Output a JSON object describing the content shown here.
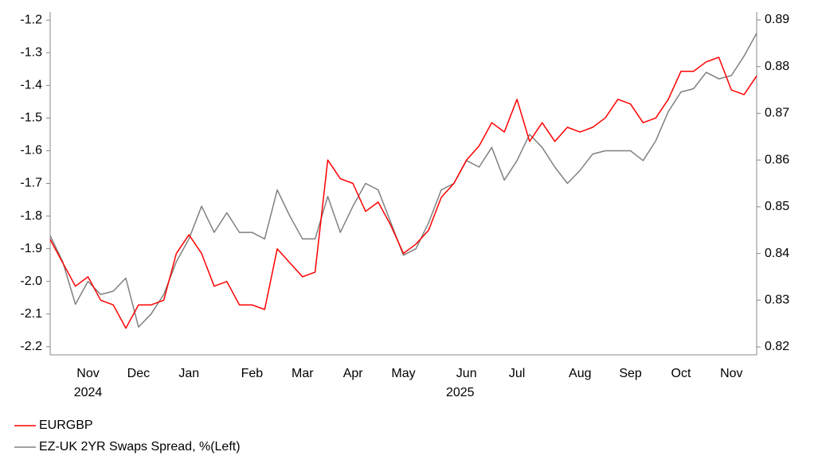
{
  "chart_data": {
    "type": "line",
    "categories": [
      null,
      null,
      null,
      "Nov",
      null,
      null,
      null,
      "Dec",
      null,
      null,
      null,
      "Jan",
      null,
      null,
      null,
      null,
      "Feb",
      null,
      null,
      null,
      "Mar",
      null,
      null,
      null,
      "Apr",
      null,
      null,
      null,
      "May",
      null,
      null,
      null,
      null,
      "Jun",
      null,
      null,
      null,
      "Jul",
      null,
      null,
      null,
      null,
      "Aug",
      null,
      null,
      null,
      "Sep",
      null,
      null,
      null,
      "Oct",
      null,
      null,
      null,
      "Nov",
      null,
      null
    ],
    "x_groups": [
      {
        "label": "2024",
        "from": 3,
        "to": 3
      },
      {
        "label": "2025",
        "from": 11,
        "to": 54
      }
    ],
    "series": [
      {
        "name": "EURGBP",
        "color": "#ff0000",
        "axis": "y2",
        "values": [
          0.843,
          0.838,
          0.833,
          0.835,
          0.83,
          0.829,
          0.824,
          0.829,
          0.829,
          0.83,
          0.84,
          0.844,
          0.84,
          0.833,
          0.834,
          0.829,
          0.829,
          0.828,
          0.841,
          0.838,
          0.835,
          0.836,
          0.86,
          0.856,
          0.855,
          0.849,
          0.851,
          0.846,
          0.84,
          0.842,
          0.845,
          0.852,
          0.855,
          0.86,
          0.863,
          0.868,
          0.866,
          0.873,
          0.864,
          0.868,
          0.864,
          0.867,
          0.866,
          0.867,
          0.869,
          0.873,
          0.872,
          0.868,
          0.869,
          0.873,
          0.879,
          0.879,
          0.881,
          0.882,
          0.875,
          0.874,
          0.878
        ]
      },
      {
        "name": "EZ-UK 2YR Swaps Spread, %(Left)",
        "color": "#808080",
        "values": [
          -1.86,
          -1.94,
          -2.07,
          -2.0,
          -2.04,
          -2.03,
          -1.99,
          -2.14,
          -2.1,
          -2.04,
          -1.94,
          -1.87,
          -1.77,
          -1.85,
          -1.79,
          -1.85,
          -1.85,
          -1.87,
          -1.72,
          -1.8,
          -1.87,
          -1.87,
          -1.74,
          -1.85,
          -1.77,
          -1.7,
          -1.72,
          -1.82,
          -1.92,
          -1.9,
          -1.82,
          -1.72,
          -1.7,
          -1.63,
          -1.65,
          -1.59,
          -1.69,
          -1.63,
          -1.55,
          -1.59,
          -1.65,
          -1.7,
          -1.66,
          -1.61,
          -1.6,
          -1.6,
          -1.6,
          -1.63,
          -1.57,
          -1.48,
          -1.42,
          -1.41,
          -1.36,
          -1.38,
          -1.37,
          -1.31,
          -1.24
        ]
      }
    ],
    "ylim": [
      -2.225,
      -1.175
    ],
    "yticks": [
      -2.2,
      -2.1,
      {
        "value": -2,
        "label": "-2.0"
      },
      -1.9,
      -1.8,
      -1.7,
      -1.6,
      -1.5,
      -1.4,
      -1.3,
      -1.2
    ],
    "y2lim": [
      0.8183,
      0.8917
    ],
    "y2ticks": [
      0.82,
      0.83,
      0.84,
      0.85,
      0.86,
      0.87,
      0.88,
      0.89
    ],
    "grid": false,
    "legend": "bottom-left"
  }
}
